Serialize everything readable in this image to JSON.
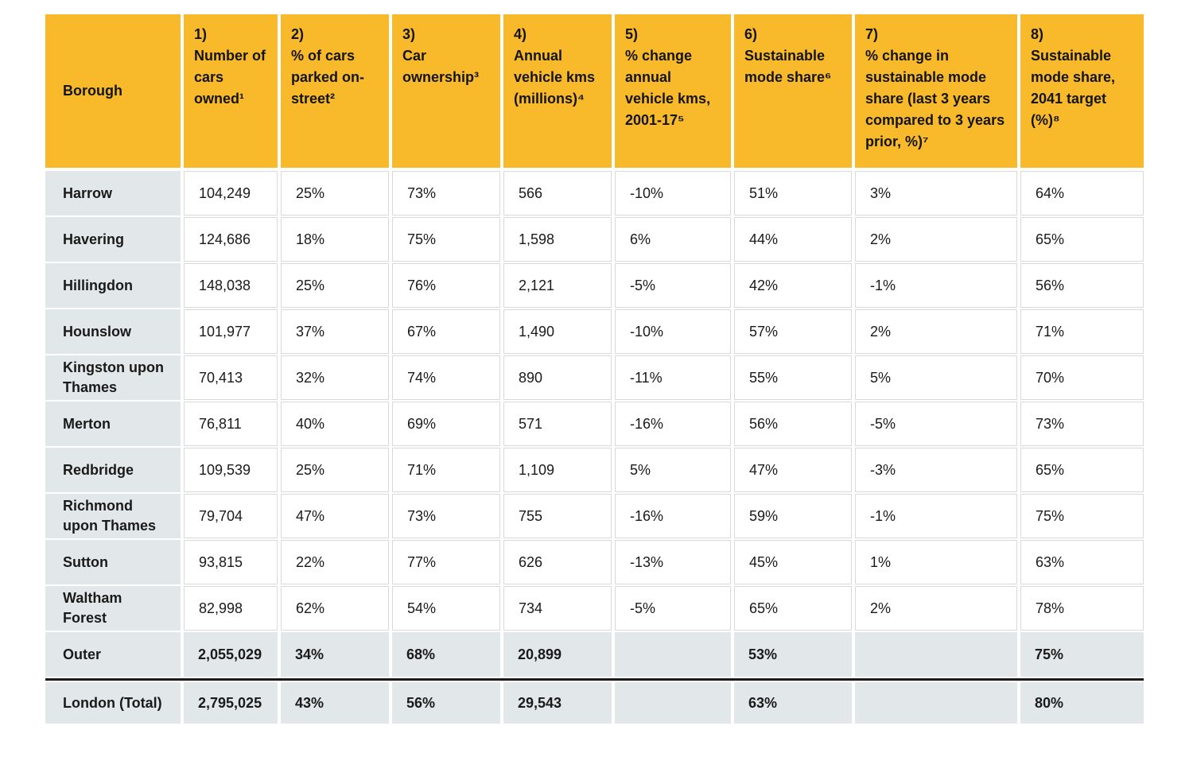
{
  "colors": {
    "header_bg": "#F8BA2B",
    "label_bg": "#E2E8E9",
    "summary_bg": "#E2E8E9",
    "cell_border": "#D9D9D9",
    "total_divider": "#1B1B1B",
    "text": "#1A1A1A"
  },
  "table": {
    "columns": [
      {
        "label": "Borough"
      },
      {
        "num": "1)",
        "label": "Number of cars owned¹"
      },
      {
        "num": "2)",
        "label": "% of cars parked on-street²"
      },
      {
        "num": "3)",
        "label": "Car ownership³"
      },
      {
        "num": "4)",
        "label": "Annual vehicle kms (millions)⁴"
      },
      {
        "num": "5)",
        "label": "% change annual vehicle kms, 2001-17⁵"
      },
      {
        "num": "6)",
        "label": "Sustainable mode share⁶"
      },
      {
        "num": "7)",
        "label": "% change in sustainable mode share (last 3 years compared to 3 years prior, %)⁷"
      },
      {
        "num": "8)",
        "label": "Sustainable mode share, 2041 target (%)⁸"
      }
    ],
    "rows": [
      {
        "borough": "Harrow",
        "values": [
          "104,249",
          "25%",
          "73%",
          "566",
          "-10%",
          "51%",
          "3%",
          "64%"
        ]
      },
      {
        "borough": "Havering",
        "values": [
          "124,686",
          "18%",
          "75%",
          "1,598",
          "6%",
          "44%",
          "2%",
          "65%"
        ]
      },
      {
        "borough": "Hillingdon",
        "values": [
          "148,038",
          "25%",
          "76%",
          "2,121",
          "-5%",
          "42%",
          "-1%",
          "56%"
        ]
      },
      {
        "borough": "Hounslow",
        "values": [
          "101,977",
          "37%",
          "67%",
          "1,490",
          "-10%",
          "57%",
          "2%",
          "71%"
        ]
      },
      {
        "borough": "Kingston upon\nThames",
        "values": [
          "70,413",
          "32%",
          "74%",
          "890",
          "-11%",
          "55%",
          "5%",
          "70%"
        ]
      },
      {
        "borough": "Merton",
        "values": [
          "76,811",
          "40%",
          "69%",
          "571",
          "-16%",
          "56%",
          "-5%",
          "73%"
        ]
      },
      {
        "borough": "Redbridge",
        "values": [
          "109,539",
          "25%",
          "71%",
          "1,109",
          "5%",
          "47%",
          "-3%",
          "65%"
        ]
      },
      {
        "borough": "Richmond\nupon Thames",
        "values": [
          "79,704",
          "47%",
          "73%",
          "755",
          "-16%",
          "59%",
          "-1%",
          "75%"
        ]
      },
      {
        "borough": "Sutton",
        "values": [
          "93,815",
          "22%",
          "77%",
          "626",
          "-13%",
          "45%",
          "1%",
          "63%"
        ]
      },
      {
        "borough": "Waltham\nForest",
        "values": [
          "82,998",
          "62%",
          "54%",
          "734",
          "-5%",
          "65%",
          "2%",
          "78%"
        ]
      }
    ],
    "summary_rows": [
      {
        "borough": "Outer",
        "values": [
          "2,055,029",
          "34%",
          "68%",
          "20,899",
          "",
          "53%",
          "",
          "75%"
        ]
      },
      {
        "borough": "London (Total)",
        "values": [
          "2,795,025",
          "43%",
          "56%",
          "29,543",
          "",
          "63%",
          "",
          "80%"
        ]
      }
    ]
  }
}
